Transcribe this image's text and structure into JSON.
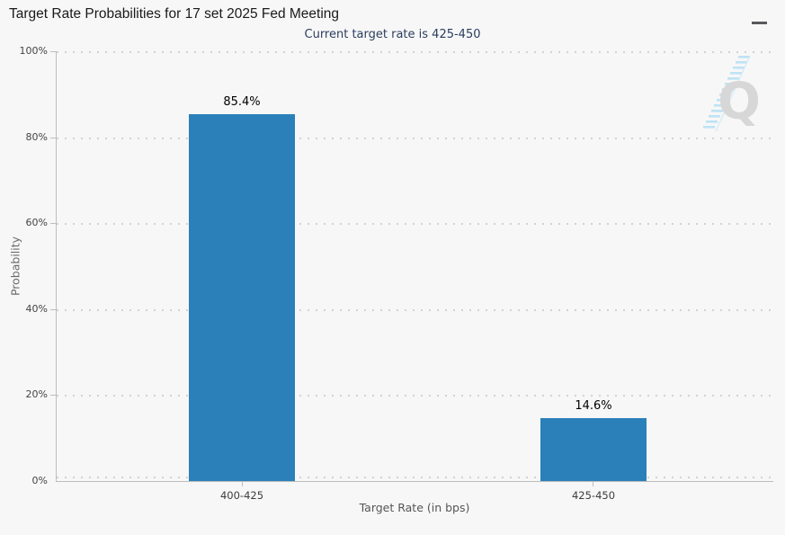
{
  "header": {
    "menu_icon": "hamburger-icon"
  },
  "watermark_letter": "Q",
  "chart_data": {
    "type": "bar",
    "title": "Target Rate Probabilities for 17 set 2025 Fed Meeting",
    "subtitle": "Current target rate is 425-450",
    "categories": [
      "400-425",
      "425-450"
    ],
    "values": [
      85.4,
      14.6
    ],
    "value_labels": [
      "85.4%",
      "14.6%"
    ],
    "xlabel": "Target Rate (in bps)",
    "ylabel": "Probability",
    "ylim": [
      0,
      100
    ],
    "yticks": [
      "100%",
      "80%",
      "60%",
      "40%",
      "20%",
      "0%"
    ],
    "grid": "horizontal-dotted",
    "legend_position": "none",
    "colors": {
      "bar": "#2b80b9",
      "grid_dots": "#d2d2d2",
      "axis": "#bdbdbd",
      "subtitle": "#2b3e5e",
      "watermark_q": "#d7d7d7",
      "watermark_dashes": "#b5e0f5"
    }
  }
}
